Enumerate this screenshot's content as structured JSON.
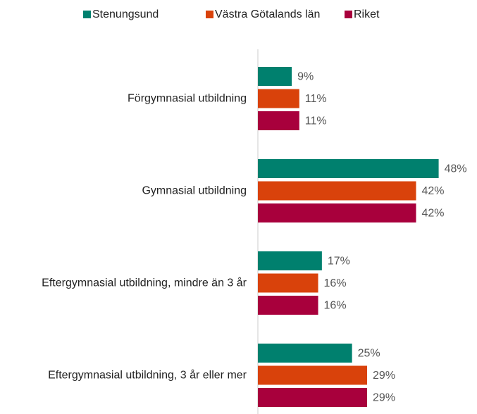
{
  "chart_data": {
    "type": "bar",
    "orientation": "horizontal",
    "categories": [
      "Förgymnasial utbildning",
      "Gymnasial utbildning",
      "Eftergymnasial utbildning, mindre än 3 år",
      "Eftergymnasial utbildning, 3 år eller mer"
    ],
    "series": [
      {
        "name": "Stenungsund",
        "color": "#00806e",
        "values": [
          9,
          48,
          17,
          25
        ],
        "value_labels": [
          "9%",
          "48%",
          "17%",
          "25%"
        ]
      },
      {
        "name": "Västra Götalands län",
        "color": "#d9420b",
        "values": [
          11,
          42,
          16,
          29
        ],
        "value_labels": [
          "11%",
          "42%",
          "16%",
          "29%"
        ]
      },
      {
        "name": "Riket",
        "color": "#a8003c",
        "values": [
          11,
          42,
          16,
          29
        ],
        "value_labels": [
          "11%",
          "42%",
          "16%",
          "29%"
        ]
      }
    ],
    "xlim": [
      0,
      55
    ],
    "legend": "top"
  }
}
